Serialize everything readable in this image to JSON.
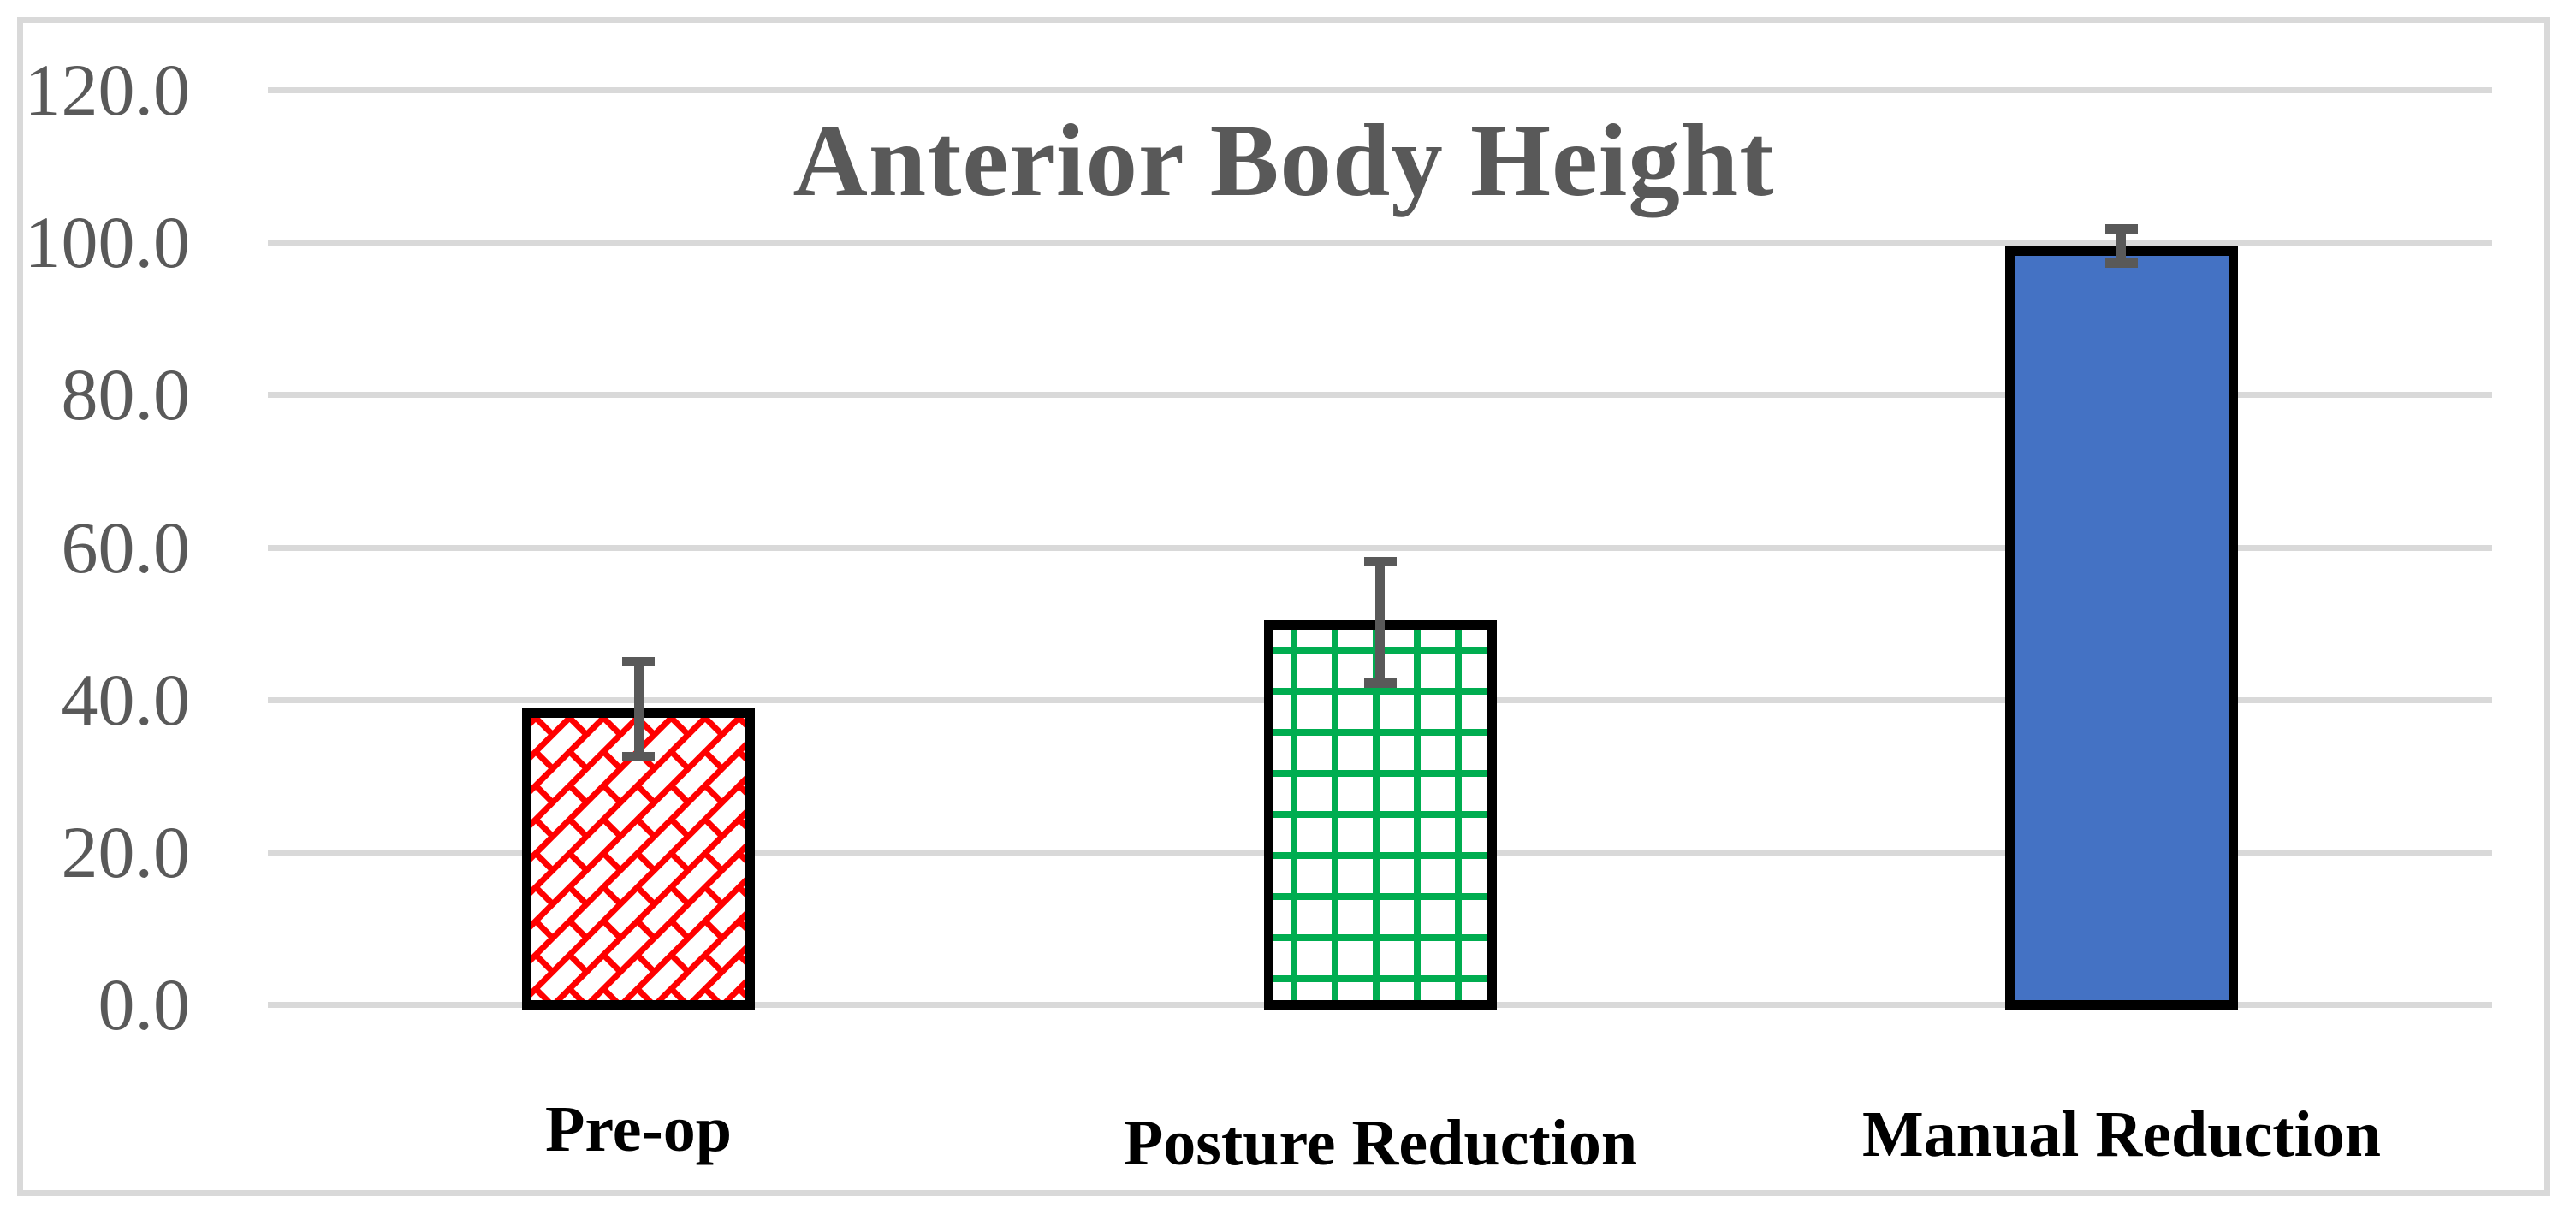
{
  "chart_data": {
    "type": "bar",
    "title": "Anterior Body Height",
    "categories": [
      "Pre-op",
      "Posture Reduction",
      "Manual Reduction"
    ],
    "values": [
      38.8,
      50.4,
      99.5
    ],
    "error_upper": [
      45.0,
      58.1,
      101.8
    ],
    "error_lower": [
      32.5,
      42.2,
      97.3
    ],
    "ylim": [
      0,
      120
    ],
    "ytick_values": [
      120,
      100,
      80,
      60,
      40,
      20,
      0
    ],
    "ytick_labels": [
      "120.0",
      "100.0",
      "80.0",
      "60.0",
      "40.0",
      "20.0",
      "0.0"
    ],
    "xlabel": "",
    "ylabel": "",
    "grid": "horizontal",
    "legend_position": "none",
    "bar_styles": [
      {
        "name": "diagonal-brick-hatch",
        "pattern_color": "#FF0000",
        "background": "#FFFFFF",
        "border_color": "#000000"
      },
      {
        "name": "grid-hatch",
        "pattern_color": "#00AD50",
        "background": "#FFFFFF",
        "border_color": "#000000"
      },
      {
        "name": "solid",
        "fill_color": "#4472C4",
        "border_color": "#000000"
      }
    ],
    "error_bar_color": "#595959",
    "gridline_color": "#D9D9D9",
    "frame_color": "#D9D9D9",
    "title_color": "#595959",
    "ytick_color": "#595959",
    "category_label_color": "#000000"
  }
}
